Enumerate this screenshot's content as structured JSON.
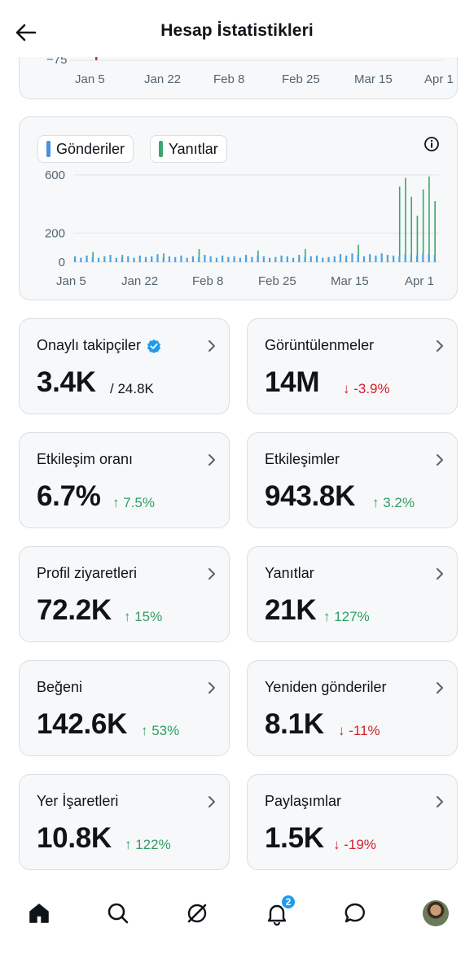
{
  "header": {
    "title": "Hesap İstatistikleri"
  },
  "top_chart": {
    "chart_data": {
      "type": "bar",
      "y_tick_visible": "−75",
      "x_ticks": [
        "Jan 5",
        "Jan 22",
        "Feb 8",
        "Feb 25",
        "Mar 15",
        "Apr 1"
      ]
    }
  },
  "activity_chart": {
    "legend": [
      {
        "label": "Gönderiler",
        "color": "#4a90e2"
      },
      {
        "label": "Yanıtlar",
        "color": "#3aa76d"
      }
    ],
    "chart_data": {
      "type": "bar",
      "x_ticks": [
        "Jan 5",
        "Jan 22",
        "Feb 8",
        "Feb 25",
        "Mar 15",
        "Apr 1"
      ],
      "y_ticks": [
        "600",
        "200",
        "0"
      ],
      "ylim": [
        0,
        650
      ],
      "series": [
        {
          "name": "Gönderiler",
          "color": "#4aa3df",
          "values": [
            40,
            30,
            45,
            35,
            30,
            40,
            50,
            30,
            35,
            40,
            30,
            45,
            35,
            40,
            55,
            30,
            40,
            35,
            45,
            30,
            40,
            35,
            50,
            40,
            30,
            45,
            35,
            40,
            30,
            50,
            35,
            45,
            40,
            30,
            35,
            45,
            40,
            30,
            50,
            35,
            40,
            45,
            30,
            35,
            40,
            55,
            45,
            60,
            50,
            40,
            55,
            45,
            60,
            50,
            45,
            40,
            55,
            50,
            45,
            60,
            55,
            50
          ]
        },
        {
          "name": "Yanıtlar",
          "color": "#3aa76d",
          "values": [
            0,
            0,
            0,
            70,
            0,
            0,
            0,
            0,
            50,
            0,
            0,
            0,
            0,
            0,
            0,
            60,
            0,
            0,
            0,
            0,
            0,
            90,
            0,
            0,
            0,
            0,
            0,
            0,
            0,
            0,
            0,
            80,
            0,
            0,
            0,
            0,
            0,
            0,
            0,
            90,
            0,
            0,
            0,
            0,
            0,
            0,
            0,
            0,
            120,
            0,
            0,
            0,
            0,
            0,
            0,
            520,
            580,
            450,
            320,
            500,
            590,
            420
          ]
        }
      ]
    }
  },
  "stats": [
    {
      "label": "Onaylı takipçiler",
      "verified": true,
      "value": "3.4K",
      "sub": "/ 24.8K"
    },
    {
      "label": "Görüntülenmeler",
      "value": "14M",
      "change": "↓ -3.9%",
      "trend": "down"
    },
    {
      "label": "Etkileşim oranı",
      "value": "6.7%",
      "change": "↑ 7.5%",
      "trend": "up"
    },
    {
      "label": "Etkileşimler",
      "value": "943.8K",
      "change": "↑ 3.2%",
      "trend": "up"
    },
    {
      "label": "Profil ziyaretleri",
      "value": "72.2K",
      "change": "↑ 15%",
      "trend": "up"
    },
    {
      "label": "Yanıtlar",
      "value": "21K",
      "change": "↑ 127%",
      "trend": "up"
    },
    {
      "label": "Beğeni",
      "value": "142.6K",
      "change": "↑ 53%",
      "trend": "up"
    },
    {
      "label": "Yeniden gönderiler",
      "value": "8.1K",
      "change": "↓ -11%",
      "trend": "down"
    },
    {
      "label": "Yer İşaretleri",
      "value": "10.8K",
      "change": "↑ 122%",
      "trend": "up"
    },
    {
      "label": "Paylaşımlar",
      "value": "1.5K",
      "change": "↓ -19%",
      "trend": "down"
    }
  ],
  "bottom_nav": {
    "items": [
      "home-icon",
      "search-icon",
      "grok-icon",
      "notifications-icon",
      "messages-icon",
      "profile-avatar"
    ],
    "notification_count": "2"
  }
}
